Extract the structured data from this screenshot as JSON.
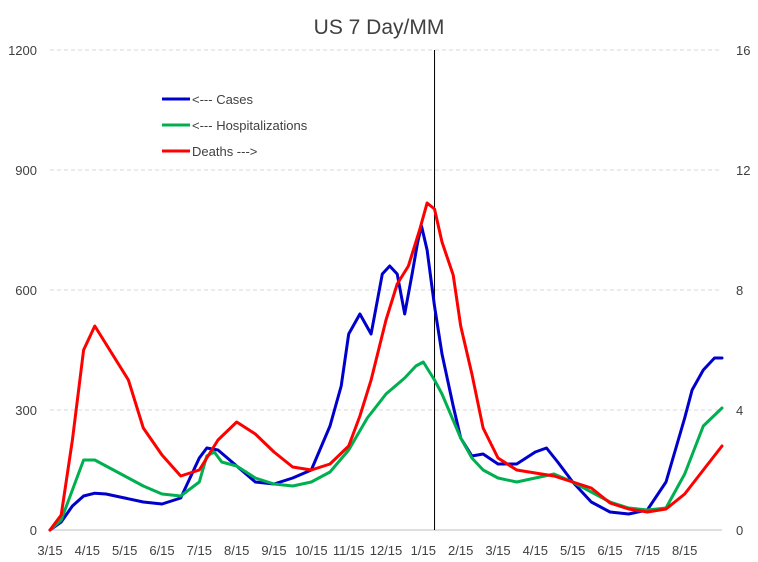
{
  "chart_data": {
    "type": "line",
    "title": "US 7 Day/MM",
    "xlabel": "",
    "ylabel": "",
    "y_left": {
      "range": [
        0,
        1200
      ],
      "ticks": [
        0,
        300,
        600,
        900,
        1200
      ]
    },
    "y_right": {
      "range": [
        0,
        16
      ],
      "ticks": [
        0,
        4,
        8,
        12,
        16
      ]
    },
    "gridlines": "horizontal dashed",
    "legend_position": "upper-left",
    "x_tick_labels": [
      "3/15",
      "4/15",
      "5/15",
      "6/15",
      "7/15",
      "8/15",
      "9/15",
      "10/15",
      "11/15",
      "12/15",
      "1/15",
      "2/15",
      "3/15",
      "4/15",
      "5/15",
      "6/15",
      "7/15",
      "8/15"
    ],
    "x_unit": "months since first 3/15",
    "vertical_marker_x": 10.3,
    "series": [
      {
        "name": "<--- Cases",
        "axis": "left",
        "color": "#0000cc",
        "x": [
          0,
          0.3,
          0.6,
          0.9,
          1.2,
          1.5,
          2,
          2.5,
          3,
          3.5,
          4,
          4.2,
          4.5,
          5,
          5.5,
          6,
          6.5,
          7,
          7.5,
          7.8,
          8,
          8.3,
          8.6,
          8.9,
          9.1,
          9.3,
          9.5,
          9.7,
          9.85,
          9.95,
          10.1,
          10.3,
          10.5,
          10.8,
          11,
          11.3,
          11.6,
          12,
          12.5,
          13,
          13.3,
          13.6,
          14,
          14.5,
          15,
          15.5,
          16,
          16.5,
          17,
          17.2,
          17.5,
          17.8,
          18
        ],
        "values": [
          0,
          20,
          60,
          85,
          92,
          90,
          80,
          70,
          65,
          80,
          180,
          205,
          200,
          160,
          120,
          115,
          130,
          150,
          260,
          360,
          490,
          540,
          490,
          640,
          660,
          640,
          540,
          640,
          720,
          760,
          700,
          560,
          440,
          310,
          230,
          185,
          190,
          165,
          165,
          195,
          205,
          170,
          120,
          70,
          45,
          40,
          50,
          120,
          280,
          350,
          400,
          430,
          430
        ]
      },
      {
        "name": "<--- Hospitalizations",
        "axis": "left",
        "color": "#00b050",
        "x": [
          0,
          0.3,
          0.6,
          0.9,
          1.2,
          1.5,
          2,
          2.5,
          3,
          3.5,
          4,
          4.2,
          4.4,
          4.6,
          5,
          5.5,
          6,
          6.5,
          7,
          7.5,
          8,
          8.5,
          9,
          9.5,
          9.8,
          10,
          10.3,
          10.5,
          11,
          11.3,
          11.6,
          12,
          12.5,
          13,
          13.5,
          14,
          14.5,
          15,
          15.5,
          16,
          16.5,
          17,
          17.5,
          18
        ],
        "values": [
          0,
          25,
          100,
          175,
          175,
          160,
          135,
          110,
          90,
          85,
          120,
          185,
          195,
          170,
          160,
          130,
          115,
          110,
          120,
          145,
          200,
          280,
          340,
          380,
          410,
          420,
          375,
          340,
          230,
          180,
          150,
          130,
          120,
          130,
          140,
          120,
          95,
          70,
          55,
          50,
          55,
          140,
          260,
          305
        ]
      },
      {
        "name": "Deaths --->",
        "axis": "right",
        "color": "#ff0000",
        "x": [
          0,
          0.3,
          0.6,
          0.9,
          1.2,
          1.5,
          1.8,
          2.1,
          2.5,
          3,
          3.5,
          4,
          4.5,
          5,
          5.5,
          6,
          6.5,
          7,
          7.5,
          8,
          8.3,
          8.6,
          9,
          9.3,
          9.6,
          9.9,
          10.1,
          10.3,
          10.5,
          10.8,
          11,
          11.3,
          11.6,
          12,
          12.5,
          13,
          13.5,
          14,
          14.5,
          15,
          15.5,
          16,
          16.5,
          17,
          17.5,
          18
        ],
        "values": [
          0,
          0.5,
          3.0,
          6.0,
          6.8,
          6.2,
          5.6,
          5.0,
          3.4,
          2.5,
          1.8,
          2.0,
          3.0,
          3.6,
          3.2,
          2.6,
          2.1,
          2.0,
          2.2,
          2.8,
          3.8,
          5.0,
          7.0,
          8.2,
          8.8,
          10.0,
          10.9,
          10.7,
          9.6,
          8.5,
          6.8,
          5.2,
          3.4,
          2.4,
          2.0,
          1.9,
          1.8,
          1.6,
          1.4,
          0.9,
          0.7,
          0.6,
          0.7,
          1.2,
          2.0,
          2.8
        ]
      }
    ]
  }
}
